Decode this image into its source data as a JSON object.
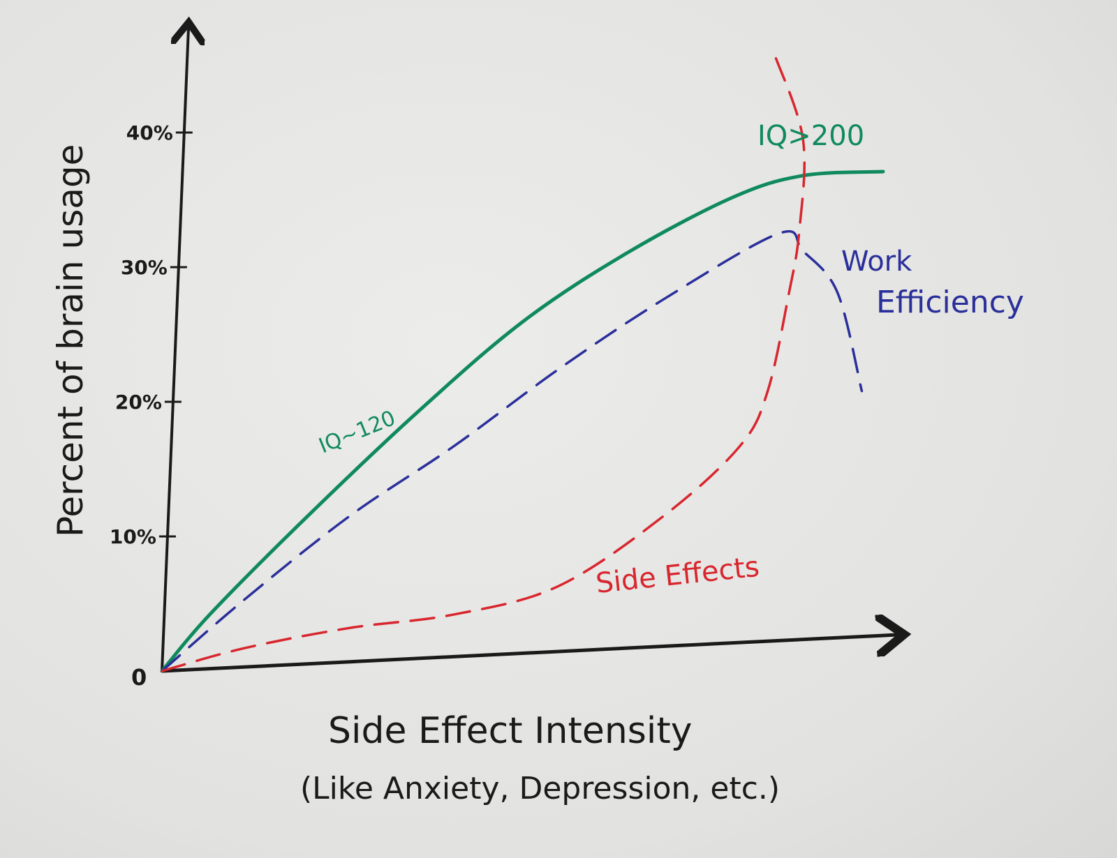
{
  "chart_data": {
    "type": "line",
    "title": "",
    "xlabel": "Side Effect Intensity",
    "xlabel_sub": "(Like Anxiety, Depression, etc.)",
    "ylabel": "Percent of brain usage",
    "xlim": [
      0,
      100
    ],
    "ylim": [
      0,
      48
    ],
    "grid": false,
    "origin_label": "0",
    "yticks": [
      {
        "value": 10,
        "label": "10%"
      },
      {
        "value": 20,
        "label": "20%"
      },
      {
        "value": 30,
        "label": "30%"
      },
      {
        "value": 40,
        "label": "40%"
      }
    ],
    "series": [
      {
        "name": "IQ~120",
        "color": "#0f8a5c",
        "style": "solid",
        "x": [
          0,
          6.5,
          19.8,
          34.9,
          49.2,
          63.4,
          77.7,
          87.2,
          98.1
        ],
        "y": [
          0,
          4.2,
          11.5,
          19.3,
          26.0,
          31.1,
          35.2,
          36.8,
          37.1
        ]
      },
      {
        "name": "Work Efficiency",
        "color": "#2a2f9a",
        "style": "dashed",
        "x": [
          0,
          11.2,
          25.5,
          39.7,
          53.9,
          68.2,
          83.9,
          87.2,
          91.9,
          95.2
        ],
        "y": [
          0,
          5.3,
          11.5,
          16.7,
          22.4,
          27.6,
          32.5,
          31.2,
          28.1,
          20.8
        ]
      },
      {
        "name": "Side Effects",
        "color": "#d8262e",
        "style": "dashed",
        "x": [
          0,
          11.2,
          25.5,
          39.7,
          53.9,
          68.2,
          78.6,
          82.4,
          85.3,
          86.7,
          87.2,
          83.4
        ],
        "y": [
          0,
          1.7,
          3.2,
          4.2,
          6.3,
          11.5,
          16.7,
          20.8,
          28.1,
          32.7,
          39.5,
          45.7
        ]
      }
    ],
    "annotations": [
      {
        "text": "IQ~120",
        "color": "#0f8a5c"
      },
      {
        "text": "IQ>200",
        "color": "#0f8a5c"
      },
      {
        "text": "Work",
        "color": "#2a2f9a"
      },
      {
        "text": "Efficiency",
        "color": "#2a2f9a"
      },
      {
        "text": "Side Effects",
        "color": "#d8262e"
      }
    ]
  }
}
